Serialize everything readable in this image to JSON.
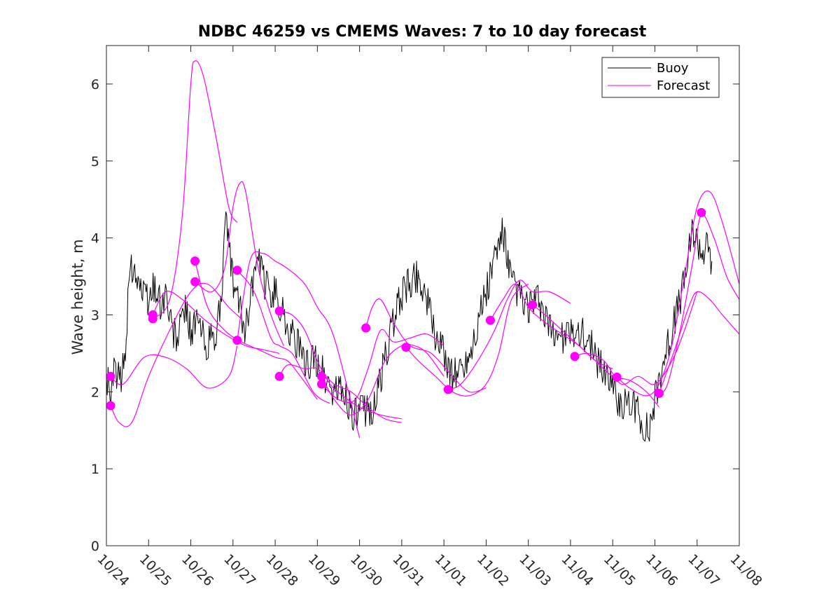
{
  "chart_data": {
    "type": "line",
    "title": "NDBC 46259 vs CMEMS Waves: 7 to 10 day forecast",
    "xlabel": "",
    "ylabel": "Wave height, m",
    "xlim": [
      0,
      15
    ],
    "ylim": [
      0,
      6.5
    ],
    "x_ticks": [
      0,
      1,
      2,
      3,
      4,
      5,
      6,
      7,
      8,
      9,
      10,
      11,
      12,
      13,
      14,
      15
    ],
    "x_tick_labels": [
      "10/24",
      "10/25",
      "10/26",
      "10/27",
      "10/28",
      "10/29",
      "10/30",
      "10/31",
      "11/01",
      "11/02",
      "11/03",
      "11/04",
      "11/05",
      "11/06",
      "11/07",
      "11/08"
    ],
    "y_ticks": [
      0,
      1,
      2,
      3,
      4,
      5,
      6
    ],
    "y_tick_labels": [
      "0",
      "1",
      "2",
      "3",
      "4",
      "5",
      "6"
    ],
    "grid": false,
    "legend": {
      "position": "top-right",
      "entries": [
        "Buoy",
        "Forecast"
      ]
    },
    "colors": {
      "buoy": "#000000",
      "forecast": "#ff00ff",
      "axes": "#262626"
    },
    "buoy": {
      "name": "Buoy",
      "anchors": [
        [
          0,
          2.2
        ],
        [
          0.1,
          2.0
        ],
        [
          0.2,
          2.3
        ],
        [
          0.35,
          2.1
        ],
        [
          0.45,
          2.6
        ],
        [
          0.55,
          3.5
        ],
        [
          0.65,
          3.7
        ],
        [
          0.75,
          3.5
        ],
        [
          0.9,
          3.2
        ],
        [
          1.0,
          3.2
        ],
        [
          1.15,
          3.4
        ],
        [
          1.3,
          3.1
        ],
        [
          1.4,
          3.3
        ],
        [
          1.55,
          2.8
        ],
        [
          1.7,
          2.7
        ],
        [
          1.85,
          3.1
        ],
        [
          2.0,
          2.8
        ],
        [
          2.2,
          2.9
        ],
        [
          2.35,
          2.6
        ],
        [
          2.5,
          2.7
        ],
        [
          2.6,
          2.6
        ],
        [
          2.75,
          3.5
        ],
        [
          2.85,
          4.3
        ],
        [
          2.95,
          3.6
        ],
        [
          3.05,
          3.3
        ],
        [
          3.2,
          3.0
        ],
        [
          3.3,
          2.8
        ],
        [
          3.45,
          3.4
        ],
        [
          3.6,
          3.7
        ],
        [
          3.75,
          3.4
        ],
        [
          3.9,
          3.3
        ],
        [
          4.0,
          3.3
        ],
        [
          4.2,
          3.0
        ],
        [
          4.35,
          2.8
        ],
        [
          4.55,
          2.6
        ],
        [
          4.7,
          2.3
        ],
        [
          4.85,
          2.4
        ],
        [
          5.0,
          2.4
        ],
        [
          5.1,
          2.3
        ],
        [
          5.25,
          2.1
        ],
        [
          5.4,
          2.0
        ],
        [
          5.55,
          2.0
        ],
        [
          5.7,
          1.9
        ],
        [
          5.85,
          1.7
        ],
        [
          6.0,
          1.75
        ],
        [
          6.2,
          1.75
        ],
        [
          6.35,
          1.8
        ],
        [
          6.55,
          2.3
        ],
        [
          6.75,
          2.8
        ],
        [
          6.95,
          3.2
        ],
        [
          7.15,
          3.4
        ],
        [
          7.35,
          3.5
        ],
        [
          7.45,
          3.45
        ],
        [
          7.6,
          3.2
        ],
        [
          7.75,
          2.8
        ],
        [
          7.9,
          2.6
        ],
        [
          8.0,
          2.5
        ],
        [
          8.2,
          2.2
        ],
        [
          8.35,
          2.3
        ],
        [
          8.5,
          2.4
        ],
        [
          8.6,
          2.5
        ],
        [
          8.75,
          2.8
        ],
        [
          8.9,
          3.1
        ],
        [
          9.05,
          3.4
        ],
        [
          9.2,
          3.7
        ],
        [
          9.3,
          3.9
        ],
        [
          9.4,
          4.1
        ],
        [
          9.5,
          3.7
        ],
        [
          9.6,
          3.4
        ],
        [
          9.75,
          3.3
        ],
        [
          9.9,
          3.1
        ],
        [
          10.1,
          3.1
        ],
        [
          10.25,
          3.2
        ],
        [
          10.35,
          3.0
        ],
        [
          10.5,
          2.8
        ],
        [
          10.65,
          2.8
        ],
        [
          10.8,
          2.7
        ],
        [
          10.95,
          2.7
        ],
        [
          11.1,
          2.8
        ],
        [
          11.25,
          2.8
        ],
        [
          11.35,
          2.7
        ],
        [
          11.5,
          2.6
        ],
        [
          11.6,
          2.4
        ],
        [
          11.8,
          2.3
        ],
        [
          11.95,
          2.2
        ],
        [
          12.1,
          1.9
        ],
        [
          12.25,
          1.85
        ],
        [
          12.4,
          1.8
        ],
        [
          12.55,
          1.8
        ],
        [
          12.7,
          1.6
        ],
        [
          12.85,
          1.5
        ],
        [
          13.0,
          1.9
        ],
        [
          13.2,
          2.4
        ],
        [
          13.35,
          2.7
        ],
        [
          13.5,
          3.0
        ],
        [
          13.65,
          3.3
        ],
        [
          13.8,
          3.8
        ],
        [
          13.9,
          4.1
        ],
        [
          14.0,
          4.0
        ],
        [
          14.1,
          3.8
        ],
        [
          14.2,
          3.9
        ],
        [
          14.35,
          3.7
        ]
      ]
    },
    "forecasts": [
      {
        "name": "Forecast",
        "x": [
          0.1,
          0.4,
          0.9,
          1.4,
          1.9,
          2.4,
          2.9,
          3.1
        ],
        "y": [
          2.2,
          2.1,
          2.45,
          2.45,
          2.3,
          2.05,
          2.2,
          2.6
        ]
      },
      {
        "name": "Forecast",
        "x": [
          0.1,
          0.3,
          0.6,
          1.0,
          1.5,
          2.0,
          2.4,
          2.9,
          3.2
        ],
        "y": [
          1.82,
          1.6,
          1.6,
          2.2,
          2.8,
          3.3,
          3.4,
          3.1,
          2.95
        ]
      },
      {
        "name": "Forecast",
        "x": [
          1.1,
          1.4,
          1.8,
          2.3,
          2.8,
          3.3,
          3.7,
          4.1
        ],
        "y": [
          3.0,
          3.3,
          3.2,
          2.95,
          2.75,
          2.6,
          2.55,
          2.5
        ]
      },
      {
        "name": "Forecast",
        "x": [
          1.1,
          1.5,
          1.8,
          2.0,
          2.1,
          2.3,
          2.6,
          2.9,
          3.1
        ],
        "y": [
          2.95,
          3.2,
          4.3,
          6.0,
          6.3,
          6.1,
          5.3,
          4.4,
          4.2
        ]
      },
      {
        "name": "Forecast",
        "x": [
          2.1,
          2.5,
          2.8,
          3.0,
          3.15,
          3.3,
          3.6,
          3.9,
          4.2
        ],
        "y": [
          3.43,
          3.3,
          3.6,
          4.4,
          4.7,
          4.6,
          3.6,
          3.0,
          2.6
        ]
      },
      {
        "name": "Forecast",
        "x": [
          2.1,
          2.4,
          2.8,
          3.2,
          3.6,
          4.0,
          4.3,
          4.6,
          5.0
        ],
        "y": [
          3.7,
          3.1,
          2.8,
          2.65,
          2.55,
          2.45,
          2.4,
          2.2,
          1.9
        ]
      },
      {
        "name": "Forecast",
        "x": [
          3.1,
          3.5,
          3.9,
          4.1,
          4.4,
          4.7,
          4.9,
          5.1,
          5.3
        ],
        "y": [
          3.58,
          3.3,
          2.7,
          2.6,
          2.5,
          2.2,
          2.0,
          1.9,
          1.85
        ]
      },
      {
        "name": "Forecast",
        "x": [
          3.1,
          3.4,
          3.7,
          4.0,
          4.3,
          4.7,
          5.0,
          5.4,
          6.0
        ],
        "y": [
          2.67,
          3.7,
          3.8,
          3.7,
          3.6,
          3.4,
          3.1,
          2.7,
          1.4
        ]
      },
      {
        "name": "Forecast",
        "x": [
          4.1,
          4.4,
          4.7,
          5.0,
          5.3,
          5.6,
          6.0,
          6.5,
          7.0
        ],
        "y": [
          3.05,
          3.0,
          2.8,
          2.4,
          2.1,
          1.95,
          1.8,
          1.7,
          1.65
        ]
      },
      {
        "name": "Forecast",
        "x": [
          4.1,
          4.3,
          4.7,
          5.0,
          5.4,
          5.8,
          6.2,
          6.6,
          7.0
        ],
        "y": [
          2.2,
          2.35,
          2.3,
          2.3,
          2.1,
          2.0,
          1.8,
          1.65,
          1.6
        ]
      },
      {
        "name": "Forecast",
        "x": [
          5.1,
          5.5,
          5.9,
          6.2,
          6.5,
          6.8,
          7.2,
          7.6,
          8.0
        ],
        "y": [
          2.1,
          1.9,
          1.9,
          2.3,
          2.8,
          2.65,
          2.7,
          2.75,
          2.6
        ]
      },
      {
        "name": "Forecast",
        "x": [
          5.1,
          5.4,
          5.8,
          6.2,
          6.6,
          7.0,
          7.3,
          7.6,
          8.0
        ],
        "y": [
          2.2,
          1.9,
          1.7,
          1.9,
          2.4,
          2.6,
          2.6,
          2.5,
          2.2
        ]
      },
      {
        "name": "Forecast",
        "x": [
          6.15,
          6.3,
          6.5,
          6.8,
          7.2,
          7.7,
          8.2,
          8.6,
          9.0
        ],
        "y": [
          2.83,
          3.1,
          3.2,
          2.9,
          2.6,
          2.5,
          2.2,
          2.0,
          2.05
        ]
      },
      {
        "name": "Forecast",
        "x": [
          7.1,
          7.4,
          7.8,
          8.2,
          8.6,
          9.0,
          9.3,
          9.6,
          10.0
        ],
        "y": [
          2.58,
          2.4,
          2.2,
          2.0,
          1.95,
          2.1,
          2.5,
          3.2,
          3.4
        ]
      },
      {
        "name": "Forecast",
        "x": [
          8.1,
          8.4,
          8.8,
          9.2,
          9.5,
          9.8,
          10.1,
          10.5,
          11.0
        ],
        "y": [
          2.03,
          2.1,
          2.4,
          2.8,
          3.2,
          3.45,
          3.3,
          3.3,
          3.15
        ]
      },
      {
        "name": "Forecast",
        "x": [
          9.1,
          9.4,
          9.7,
          10.0,
          10.4,
          10.8,
          11.2,
          11.6,
          12.0
        ],
        "y": [
          2.93,
          3.2,
          3.4,
          3.1,
          2.9,
          2.75,
          2.6,
          2.4,
          2.3
        ]
      },
      {
        "name": "Forecast",
        "x": [
          10.1,
          10.4,
          10.8,
          11.2,
          11.6,
          12.0,
          12.4,
          12.8,
          13.1
        ],
        "y": [
          3.13,
          3.0,
          2.8,
          2.6,
          2.4,
          2.2,
          2.15,
          2.0,
          1.8
        ]
      },
      {
        "name": "Forecast",
        "x": [
          11.1,
          11.4,
          11.8,
          12.2,
          12.6,
          13.0,
          13.4,
          13.7,
          14.0
        ],
        "y": [
          2.46,
          2.5,
          2.4,
          2.1,
          2.2,
          2.1,
          2.4,
          2.8,
          3.3
        ]
      },
      {
        "name": "Forecast",
        "x": [
          12.1,
          12.4,
          12.8,
          13.1,
          13.4,
          13.7,
          14.0,
          14.3,
          14.6,
          15.0
        ],
        "y": [
          2.19,
          2.05,
          1.95,
          2.1,
          2.6,
          3.5,
          4.4,
          4.6,
          4.2,
          3.4
        ]
      },
      {
        "name": "Forecast",
        "x": [
          13.1,
          13.3,
          13.6,
          13.9,
          14.1,
          14.4,
          14.7,
          15.0
        ],
        "y": [
          1.98,
          2.1,
          2.8,
          3.7,
          4.3,
          4.0,
          3.5,
          3.2
        ]
      },
      {
        "name": "Forecast",
        "x": [
          13.1,
          13.5,
          13.8,
          14.0,
          14.3,
          14.6,
          15.0
        ],
        "y": [
          1.98,
          2.6,
          3.1,
          3.3,
          3.2,
          3.0,
          2.75
        ]
      }
    ],
    "forecast_markers": [
      [
        0.1,
        2.2
      ],
      [
        0.1,
        1.82
      ],
      [
        1.1,
        3.0
      ],
      [
        1.1,
        2.95
      ],
      [
        2.1,
        3.7
      ],
      [
        2.1,
        3.43
      ],
      [
        3.1,
        3.58
      ],
      [
        3.1,
        2.67
      ],
      [
        4.1,
        3.05
      ],
      [
        4.1,
        2.2
      ],
      [
        5.1,
        2.2
      ],
      [
        5.1,
        2.1
      ],
      [
        6.15,
        2.83
      ],
      [
        7.1,
        2.58
      ],
      [
        8.1,
        2.03
      ],
      [
        9.1,
        2.93
      ],
      [
        10.1,
        3.13
      ],
      [
        11.1,
        2.46
      ],
      [
        12.1,
        2.19
      ],
      [
        13.1,
        1.98
      ],
      [
        14.1,
        4.33
      ]
    ]
  }
}
